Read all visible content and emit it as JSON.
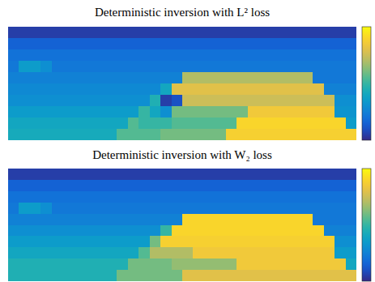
{
  "chart_data": [
    {
      "type": "heatmap",
      "title": "Deterministic inversion with L² loss",
      "tick_labels": false,
      "colorbar_range": [
        0,
        1
      ],
      "values": [
        [
          0.05,
          0.05,
          0.05,
          0.05,
          0.05,
          0.05,
          0.05,
          0.05,
          0.05,
          0.05,
          0.05,
          0.05,
          0.05,
          0.05,
          0.05,
          0.05,
          0.05,
          0.05,
          0.05,
          0.05,
          0.05,
          0.05,
          0.05,
          0.05,
          0.05,
          0.05,
          0.05,
          0.05,
          0.05,
          0.05,
          0.05,
          0.05
        ],
        [
          0.15,
          0.15,
          0.15,
          0.15,
          0.15,
          0.15,
          0.15,
          0.15,
          0.15,
          0.15,
          0.15,
          0.15,
          0.15,
          0.15,
          0.15,
          0.15,
          0.15,
          0.15,
          0.15,
          0.15,
          0.15,
          0.15,
          0.15,
          0.15,
          0.15,
          0.15,
          0.15,
          0.15,
          0.15,
          0.15,
          0.15,
          0.15
        ],
        [
          0.2,
          0.2,
          0.2,
          0.2,
          0.2,
          0.2,
          0.2,
          0.2,
          0.2,
          0.2,
          0.2,
          0.2,
          0.2,
          0.2,
          0.2,
          0.2,
          0.2,
          0.2,
          0.2,
          0.2,
          0.2,
          0.2,
          0.2,
          0.2,
          0.2,
          0.2,
          0.2,
          0.2,
          0.2,
          0.2,
          0.2,
          0.2
        ],
        [
          0.22,
          0.35,
          0.35,
          0.3,
          0.22,
          0.22,
          0.22,
          0.22,
          0.22,
          0.22,
          0.22,
          0.22,
          0.22,
          0.22,
          0.22,
          0.22,
          0.22,
          0.22,
          0.22,
          0.22,
          0.22,
          0.22,
          0.22,
          0.22,
          0.22,
          0.22,
          0.22,
          0.22,
          0.22,
          0.22,
          0.22,
          0.22
        ],
        [
          0.25,
          0.25,
          0.25,
          0.25,
          0.25,
          0.25,
          0.25,
          0.25,
          0.25,
          0.25,
          0.25,
          0.25,
          0.25,
          0.25,
          0.25,
          0.25,
          0.7,
          0.7,
          0.7,
          0.7,
          0.7,
          0.7,
          0.7,
          0.7,
          0.7,
          0.7,
          0.7,
          0.7,
          0.22,
          0.22,
          0.22,
          0.22
        ],
        [
          0.28,
          0.28,
          0.28,
          0.28,
          0.28,
          0.28,
          0.28,
          0.28,
          0.28,
          0.28,
          0.28,
          0.28,
          0.28,
          0.28,
          0.4,
          0.8,
          0.8,
          0.8,
          0.8,
          0.8,
          0.8,
          0.8,
          0.8,
          0.8,
          0.8,
          0.8,
          0.8,
          0.8,
          0.8,
          0.25,
          0.25,
          0.25
        ],
        [
          0.3,
          0.3,
          0.3,
          0.3,
          0.3,
          0.3,
          0.3,
          0.3,
          0.3,
          0.3,
          0.3,
          0.3,
          0.3,
          0.45,
          0.05,
          0.1,
          0.75,
          0.75,
          0.75,
          0.75,
          0.75,
          0.75,
          0.75,
          0.75,
          0.75,
          0.75,
          0.75,
          0.75,
          0.75,
          0.75,
          0.3,
          0.3
        ],
        [
          0.35,
          0.35,
          0.35,
          0.35,
          0.35,
          0.35,
          0.35,
          0.35,
          0.35,
          0.35,
          0.35,
          0.35,
          0.5,
          0.4,
          0.3,
          0.6,
          0.6,
          0.6,
          0.6,
          0.6,
          0.6,
          0.6,
          0.85,
          0.85,
          0.85,
          0.85,
          0.85,
          0.85,
          0.85,
          0.85,
          0.32,
          0.32
        ],
        [
          0.4,
          0.4,
          0.4,
          0.4,
          0.4,
          0.4,
          0.4,
          0.4,
          0.4,
          0.4,
          0.4,
          0.55,
          0.5,
          0.5,
          0.5,
          0.55,
          0.55,
          0.55,
          0.55,
          0.55,
          0.55,
          0.9,
          0.9,
          0.9,
          0.9,
          0.9,
          0.9,
          0.9,
          0.9,
          0.9,
          0.9,
          0.35
        ],
        [
          0.42,
          0.42,
          0.42,
          0.42,
          0.42,
          0.42,
          0.42,
          0.42,
          0.42,
          0.42,
          0.55,
          0.55,
          0.55,
          0.55,
          0.6,
          0.6,
          0.6,
          0.6,
          0.6,
          0.6,
          0.88,
          0.88,
          0.88,
          0.88,
          0.88,
          0.88,
          0.88,
          0.88,
          0.88,
          0.88,
          0.88,
          0.88
        ]
      ]
    },
    {
      "type": "heatmap",
      "title": "Deterministic inversion with W₂ loss",
      "tick_labels": false,
      "colorbar_range": [
        0,
        1
      ],
      "values": [
        [
          0.05,
          0.05,
          0.05,
          0.05,
          0.05,
          0.05,
          0.05,
          0.05,
          0.05,
          0.05,
          0.05,
          0.05,
          0.05,
          0.05,
          0.05,
          0.05,
          0.05,
          0.05,
          0.05,
          0.05,
          0.05,
          0.05,
          0.05,
          0.05,
          0.05,
          0.05,
          0.05,
          0.05,
          0.05,
          0.05,
          0.05,
          0.05
        ],
        [
          0.15,
          0.15,
          0.15,
          0.15,
          0.15,
          0.15,
          0.15,
          0.15,
          0.15,
          0.15,
          0.15,
          0.15,
          0.15,
          0.15,
          0.15,
          0.15,
          0.15,
          0.15,
          0.15,
          0.15,
          0.15,
          0.15,
          0.15,
          0.15,
          0.15,
          0.15,
          0.15,
          0.15,
          0.15,
          0.15,
          0.15,
          0.15
        ],
        [
          0.2,
          0.2,
          0.2,
          0.2,
          0.2,
          0.2,
          0.2,
          0.2,
          0.2,
          0.2,
          0.2,
          0.2,
          0.2,
          0.2,
          0.2,
          0.2,
          0.2,
          0.2,
          0.2,
          0.2,
          0.2,
          0.2,
          0.2,
          0.2,
          0.2,
          0.2,
          0.2,
          0.2,
          0.2,
          0.2,
          0.2,
          0.2
        ],
        [
          0.22,
          0.35,
          0.35,
          0.3,
          0.22,
          0.22,
          0.22,
          0.22,
          0.22,
          0.22,
          0.22,
          0.22,
          0.22,
          0.22,
          0.22,
          0.22,
          0.22,
          0.22,
          0.22,
          0.22,
          0.22,
          0.22,
          0.22,
          0.22,
          0.22,
          0.22,
          0.22,
          0.22,
          0.22,
          0.22,
          0.22,
          0.22
        ],
        [
          0.25,
          0.25,
          0.25,
          0.25,
          0.25,
          0.25,
          0.25,
          0.25,
          0.25,
          0.25,
          0.25,
          0.25,
          0.25,
          0.25,
          0.25,
          0.25,
          0.9,
          0.9,
          0.9,
          0.9,
          0.9,
          0.9,
          0.9,
          0.9,
          0.9,
          0.9,
          0.9,
          0.9,
          0.22,
          0.22,
          0.22,
          0.22
        ],
        [
          0.3,
          0.3,
          0.3,
          0.3,
          0.3,
          0.3,
          0.3,
          0.3,
          0.3,
          0.3,
          0.3,
          0.3,
          0.3,
          0.3,
          0.5,
          0.9,
          0.9,
          0.9,
          0.9,
          0.9,
          0.9,
          0.9,
          0.9,
          0.9,
          0.9,
          0.9,
          0.9,
          0.9,
          0.9,
          0.25,
          0.25,
          0.25
        ],
        [
          0.35,
          0.35,
          0.35,
          0.35,
          0.35,
          0.35,
          0.35,
          0.35,
          0.35,
          0.35,
          0.35,
          0.35,
          0.35,
          0.6,
          0.88,
          0.88,
          0.88,
          0.88,
          0.88,
          0.88,
          0.88,
          0.88,
          0.88,
          0.88,
          0.88,
          0.88,
          0.88,
          0.88,
          0.88,
          0.88,
          0.3,
          0.3
        ],
        [
          0.4,
          0.4,
          0.4,
          0.4,
          0.4,
          0.4,
          0.4,
          0.4,
          0.4,
          0.4,
          0.4,
          0.4,
          0.55,
          0.7,
          0.7,
          0.7,
          0.7,
          0.85,
          0.85,
          0.85,
          0.85,
          0.85,
          0.85,
          0.85,
          0.85,
          0.85,
          0.85,
          0.85,
          0.85,
          0.85,
          0.35,
          0.35
        ],
        [
          0.45,
          0.45,
          0.45,
          0.45,
          0.45,
          0.45,
          0.45,
          0.45,
          0.45,
          0.45,
          0.45,
          0.6,
          0.6,
          0.6,
          0.6,
          0.65,
          0.65,
          0.65,
          0.65,
          0.65,
          0.65,
          0.85,
          0.85,
          0.85,
          0.85,
          0.85,
          0.85,
          0.85,
          0.85,
          0.85,
          0.85,
          0.4
        ],
        [
          0.45,
          0.45,
          0.45,
          0.45,
          0.45,
          0.45,
          0.45,
          0.45,
          0.45,
          0.45,
          0.6,
          0.6,
          0.6,
          0.6,
          0.6,
          0.6,
          0.8,
          0.8,
          0.8,
          0.8,
          0.8,
          0.8,
          0.8,
          0.8,
          0.8,
          0.8,
          0.8,
          0.8,
          0.8,
          0.8,
          0.8,
          0.8
        ]
      ]
    }
  ]
}
